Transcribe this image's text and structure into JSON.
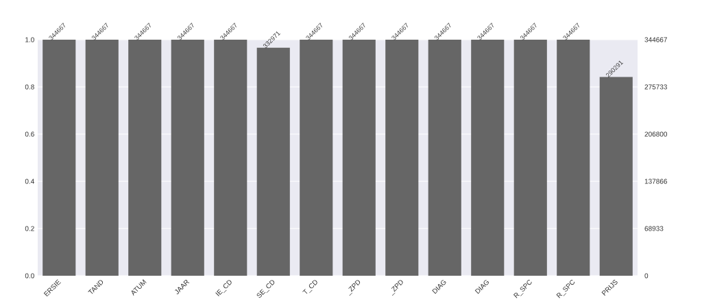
{
  "chart_data": {
    "type": "bar",
    "categories": [
      "ERSIE",
      "TAND",
      "ATUM",
      "JAAR",
      "IE_CD",
      "SE_CD",
      "T_CD",
      "_ZPD",
      "_ZPD",
      "DIAG",
      "DIAG",
      "R_SPC",
      "R_SPC",
      "PRIJS"
    ],
    "series": [
      {
        "color": "#666666",
        "axis": "y2",
        "values": [
          344667,
          344667,
          344667,
          344667,
          344667,
          332971,
          344667,
          344667,
          344667,
          344667,
          344667,
          344667,
          344667,
          290291
        ]
      }
    ],
    "data_labels": true,
    "ylim": [
      0,
      1
    ],
    "yticks": [
      {
        "value": 0,
        "label": "0.0"
      },
      {
        "value": 0.2,
        "label": "0.2"
      },
      {
        "value": 0.4,
        "label": "0.4"
      },
      {
        "value": 0.6,
        "label": "0.6"
      },
      {
        "value": 0.8,
        "label": "0.8"
      },
      {
        "value": 1,
        "label": "1.0"
      }
    ],
    "y2lim": [
      0,
      344667
    ],
    "y2ticks": [
      0,
      68933,
      137866,
      206800,
      275733,
      344667
    ],
    "grid": "y"
  }
}
